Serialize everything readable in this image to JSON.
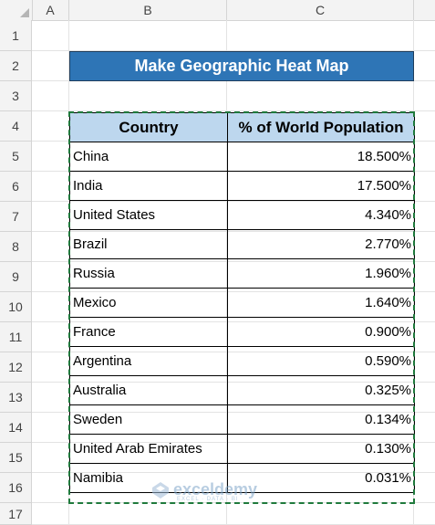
{
  "columns": [
    "A",
    "B",
    "C"
  ],
  "rows": [
    "1",
    "2",
    "3",
    "4",
    "5",
    "6",
    "7",
    "8",
    "9",
    "10",
    "11",
    "12",
    "13",
    "14",
    "15",
    "16",
    "17"
  ],
  "title": "Make Geographic Heat Map",
  "table": {
    "headers": [
      "Country",
      "% of World Population"
    ],
    "rows": [
      [
        "China",
        "18.500%"
      ],
      [
        "India",
        "17.500%"
      ],
      [
        "United States",
        "4.340%"
      ],
      [
        "Brazil",
        "2.770%"
      ],
      [
        "Russia",
        "1.960%"
      ],
      [
        "Mexico",
        "1.640%"
      ],
      [
        "France",
        "0.900%"
      ],
      [
        "Argentina",
        "0.590%"
      ],
      [
        "Australia",
        "0.325%"
      ],
      [
        "Sweden",
        "0.134%"
      ],
      [
        "United Arab Emirates",
        "0.130%"
      ],
      [
        "Namibia",
        "0.031%"
      ]
    ]
  },
  "watermark": {
    "brand": "exceldemy",
    "tagline": "EXCEL · DATA · BI"
  },
  "colors": {
    "title_bg": "#2e75b6",
    "header_bg": "#bdd7ee",
    "marquee": "#1f7a3c"
  }
}
